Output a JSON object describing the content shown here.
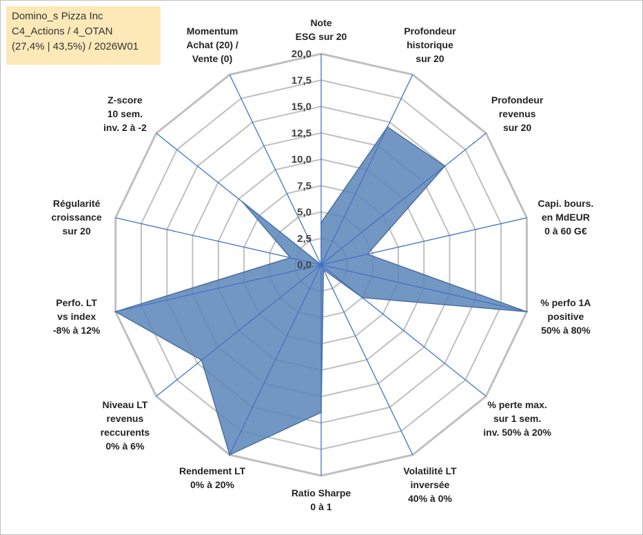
{
  "info_box": {
    "line1": "Domino_s Pizza Inc",
    "line2": "C4_Actions / 4_OTAN",
    "line3": "(27,4% | 43,5%) / 2026W01"
  },
  "colors": {
    "grid": "#bfbfbf",
    "spoke": "#4472c4",
    "fill": "#5b85b8",
    "fill_stroke": "#4a6fa0",
    "info_bg": "#fde9b8"
  },
  "chart_data": {
    "type": "radar",
    "title": "",
    "rlim": [
      0,
      20
    ],
    "grid": true,
    "tick_labels": [
      "0,0",
      "2,5",
      "5,0",
      "7,5",
      "10,0",
      "12,5",
      "15,0",
      "17,5",
      "20,0"
    ],
    "categories": [
      [
        "Note",
        "ESG sur 20"
      ],
      [
        "Profondeur",
        "historique",
        "sur 20"
      ],
      [
        "Profondeur",
        "revenus",
        "sur 20"
      ],
      [
        "Capi. bours.",
        "en MdEUR",
        "0 à 60 G€"
      ],
      [
        "% perfo 1A",
        "positive",
        "50% à 80%"
      ],
      [
        "% perte max.",
        "sur 1 sem.",
        "inv. 50% à 20%"
      ],
      [
        "Volatilité LT",
        "inversée",
        "40% à 0%"
      ],
      [
        "Ratio Sharpe",
        "0 à 1"
      ],
      [
        "Rendement LT",
        "0% à 20%"
      ],
      [
        "Niveau LT",
        "revenus",
        "reccurents",
        "0% à 6%"
      ],
      [
        "Perfo. LT",
        "vs index",
        "-8% à 12%"
      ],
      [
        "Régularité",
        "croissance",
        "sur 20"
      ],
      [
        "Z-score",
        "10 sem.",
        "inv. 2 à -2"
      ],
      [
        "Momentum",
        "Achat (20) /",
        "Vente (0)"
      ]
    ],
    "series": [
      {
        "values": [
          4.0,
          14.5,
          15.0,
          4.5,
          20.0,
          5.0,
          0.5,
          14.0,
          20.0,
          14.5,
          20.0,
          3.0,
          9.5,
          0.0
        ]
      }
    ]
  }
}
